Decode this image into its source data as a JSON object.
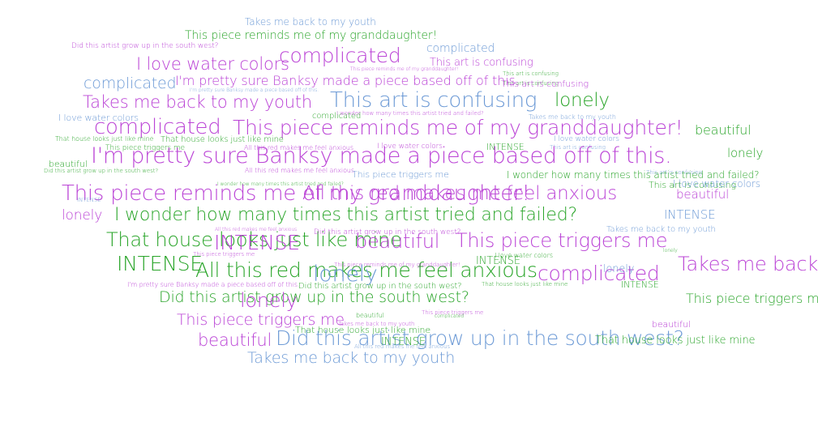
{
  "colors": {
    "green": "#2aa52a",
    "purple": "#bb44d6",
    "blue": "#6e9bd6"
  },
  "words": [
    {
      "text": "Takes me back to my youth",
      "color": "blue"
    },
    {
      "text": "This piece reminds me of my granddaughter!",
      "color": "green"
    },
    {
      "text": "Did this artist grow up in the south west?",
      "color": "purple"
    },
    {
      "text": "complicated",
      "color": "purple"
    },
    {
      "text": "complicated",
      "color": "blue"
    },
    {
      "text": "This art is confusing",
      "color": "purple"
    },
    {
      "text": "I love water colors",
      "color": "purple"
    },
    {
      "text": "This piece reminds me of my granddaughter!",
      "color": "purple"
    },
    {
      "text": "This art is confusing",
      "color": "green"
    },
    {
      "text": "This art is confusing",
      "color": "green"
    },
    {
      "text": "complicated",
      "color": "blue"
    },
    {
      "text": "I'm pretty sure Banksy made a piece based off of this.",
      "color": "purple"
    },
    {
      "text": "This art is confusing",
      "color": "purple"
    },
    {
      "text": "I'm pretty sure Banksy made a piece based off of this.",
      "color": "blue"
    },
    {
      "text": "Takes me back to my youth",
      "color": "purple"
    },
    {
      "text": "This art is confusing",
      "color": "blue"
    },
    {
      "text": "lonely",
      "color": "green"
    },
    {
      "text": "I love water colors",
      "color": "blue"
    },
    {
      "text": "complicated",
      "color": "green"
    },
    {
      "text": "I wonder how many times this artist tried and failed?",
      "color": "purple"
    },
    {
      "text": "Takes me back to my youth",
      "color": "blue"
    },
    {
      "text": "complicated",
      "color": "purple"
    },
    {
      "text": "This piece reminds me of my granddaughter!",
      "color": "purple"
    },
    {
      "text": "beautiful",
      "color": "green"
    },
    {
      "text": "That house looks just like mine",
      "color": "green"
    },
    {
      "text": "That house looks just like mine",
      "color": "green"
    },
    {
      "text": "I love water colors",
      "color": "blue"
    },
    {
      "text": "This piece triggers me",
      "color": "green"
    },
    {
      "text": "All this red makes me feel anxious",
      "color": "purple"
    },
    {
      "text": "I love water colors",
      "color": "purple"
    },
    {
      "text": "INTENSE",
      "color": "green"
    },
    {
      "text": "This art is confusing",
      "color": "blue"
    },
    {
      "text": "I'm pretty sure Banksy made a piece based off of this.",
      "color": "purple"
    },
    {
      "text": "lonely",
      "color": "green"
    },
    {
      "text": "beautiful",
      "color": "green"
    },
    {
      "text": "Did this artist grow up in the south west?",
      "color": "green"
    },
    {
      "text": "All this red makes me feel anxious",
      "color": "purple"
    },
    {
      "text": "This piece triggers me",
      "color": "blue"
    },
    {
      "text": "I wonder how many times this artist tried and failed?",
      "color": "green"
    },
    {
      "text": "This art is confusing",
      "color": "blue"
    },
    {
      "text": "This art is confusing",
      "color": "green"
    },
    {
      "text": "I love water colors",
      "color": "blue"
    },
    {
      "text": "I wonder how many times this artist tried and failed?",
      "color": "green"
    },
    {
      "text": "All this red makes me feel anxious",
      "color": "purple"
    },
    {
      "text": "beautiful",
      "color": "purple"
    },
    {
      "text": "This piece reminds me of my granddaughter!",
      "color": "purple"
    },
    {
      "text": "lonely",
      "color": "purple"
    },
    {
      "text": "I wonder how many times this artist tried and failed?",
      "color": "green"
    },
    {
      "text": "INTENSE",
      "color": "blue"
    },
    {
      "text": "INTENSE",
      "color": "blue"
    },
    {
      "text": "That house looks just like mine",
      "color": "green"
    },
    {
      "text": "All this red makes me feel anxious",
      "color": "purple"
    },
    {
      "text": "Did this artist grow up in the south west?",
      "color": "purple"
    },
    {
      "text": "Takes me back to my youth",
      "color": "blue"
    },
    {
      "text": "INTENSE",
      "color": "purple"
    },
    {
      "text": "beautiful",
      "color": "purple"
    },
    {
      "text": "This piece triggers me",
      "color": "purple"
    },
    {
      "text": "This piece triggers me",
      "color": "purple"
    },
    {
      "text": "lonely",
      "color": "green"
    },
    {
      "text": "INTENSE",
      "color": "green"
    },
    {
      "text": "INTENSE",
      "color": "green"
    },
    {
      "text": "All this red makes me feel anxious",
      "color": "green"
    },
    {
      "text": "I love water colors",
      "color": "green"
    },
    {
      "text": "lonely",
      "color": "blue"
    },
    {
      "text": "complicated",
      "color": "purple"
    },
    {
      "text": "lonely",
      "color": "blue"
    },
    {
      "text": "Takes me back to my youth",
      "color": "purple"
    },
    {
      "text": "This piece reminds me of my granddaughter!",
      "color": "purple"
    },
    {
      "text": "I'm pretty sure Banksy made a piece based off of this.",
      "color": "purple"
    },
    {
      "text": "Did this artist grow up in the south west?",
      "color": "green"
    },
    {
      "text": "That house looks just like mine",
      "color": "green"
    },
    {
      "text": "INTENSE",
      "color": "green"
    },
    {
      "text": "Did this artist grow up in the south west?",
      "color": "green"
    },
    {
      "text": "lonely",
      "color": "purple"
    },
    {
      "text": "This piece triggers me",
      "color": "green"
    },
    {
      "text": "This piece triggers me",
      "color": "purple"
    },
    {
      "text": "Takes me back to my youth",
      "color": "purple"
    },
    {
      "text": "This piece triggers me",
      "color": "purple"
    },
    {
      "text": "beautiful",
      "color": "green"
    },
    {
      "text": "That house looks just like mine",
      "color": "green"
    },
    {
      "text": "complicated",
      "color": "green"
    },
    {
      "text": "beautiful",
      "color": "purple"
    },
    {
      "text": "beautiful",
      "color": "purple"
    },
    {
      "text": "Did this artist grow up in the south west?",
      "color": "blue"
    },
    {
      "text": "INTENSE",
      "color": "green"
    },
    {
      "text": "That house looks just like mine",
      "color": "green"
    },
    {
      "text": "All this red makes me feel anxious",
      "color": "blue"
    },
    {
      "text": "Takes me back to my youth",
      "color": "blue"
    }
  ]
}
